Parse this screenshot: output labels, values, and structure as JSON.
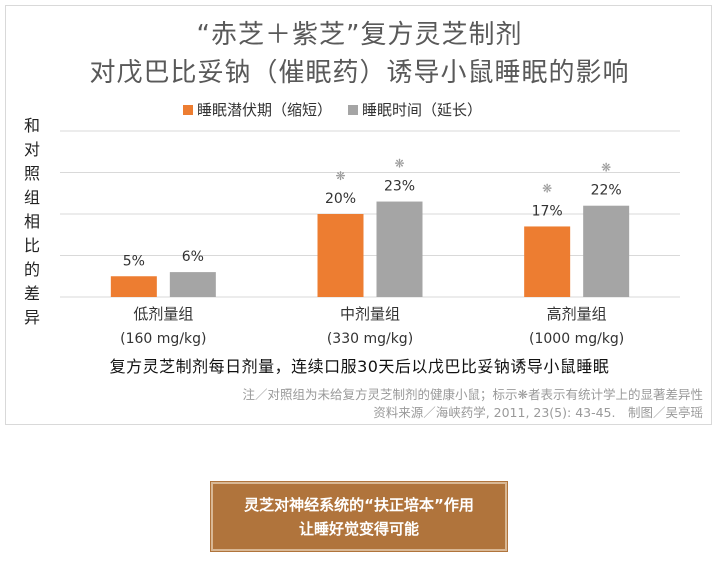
{
  "title": {
    "line1": "“赤芝＋紫芝”复方灵芝制剂",
    "line2": "对戊巴比妥钠（催眠药）诱导小鼠睡眠的影响"
  },
  "y_axis_label": "和对照组相比的差异",
  "x_axis_title": "复方灵芝制剂每日剂量，连续口服30天后以戊巴比妥钠诱导小鼠睡眠",
  "notes": {
    "line1": "注／对照组为未给复方灵芝制剂的健康小鼠；标示❋者表示有统计学上的显著差异性",
    "line2": "资料来源／海峡药学, 2011, 23(5): 43-45.　制图／吴亭瑶"
  },
  "banner": {
    "line1": "灵芝对神经系统的“扶正培本”作用",
    "line2": "让睡好觉变得可能"
  },
  "colors": {
    "orange": "#ed7d31",
    "gray": "#a5a5a5",
    "banner": "#b0743c"
  },
  "chart_data": {
    "type": "bar",
    "categories": [
      {
        "name": "低剂量组",
        "dose": "(160 mg/kg)"
      },
      {
        "name": "中剂量组",
        "dose": "(330 mg/kg)"
      },
      {
        "name": "高剂量组",
        "dose": "(1000 mg/kg)"
      }
    ],
    "series": [
      {
        "name": "睡眠潜伏期（缩短）",
        "color": "#ed7d31",
        "values": [
          5,
          20,
          17
        ],
        "labels": [
          "5%",
          "20%",
          "17%"
        ],
        "significant": [
          false,
          true,
          true
        ]
      },
      {
        "name": "睡眠时间（延长）",
        "color": "#a5a5a5",
        "values": [
          6,
          23,
          22
        ],
        "labels": [
          "6%",
          "23%",
          "22%"
        ],
        "significant": [
          false,
          true,
          true
        ]
      }
    ],
    "significance_marker": "❋",
    "ylim": [
      0,
      40
    ],
    "grid": true,
    "legend_position": "top"
  }
}
